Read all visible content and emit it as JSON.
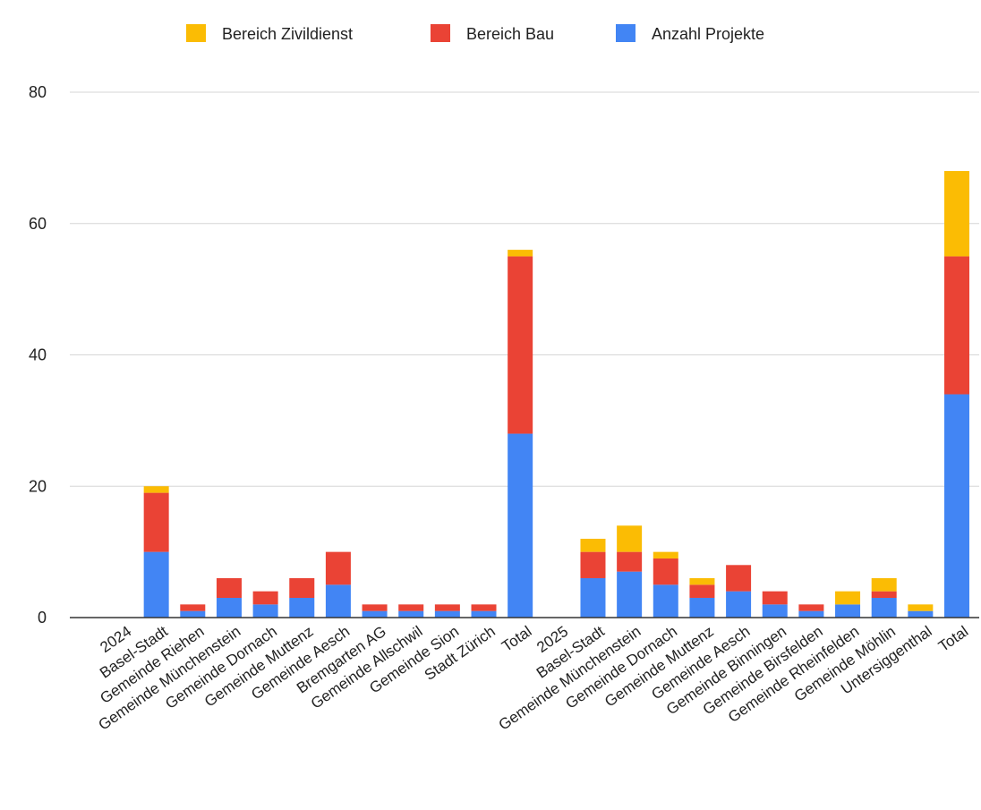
{
  "chart_data": {
    "type": "bar",
    "stacked": true,
    "categories": [
      "2024",
      "Basel-Stadt",
      "Gemeinde Riehen",
      "Gemeinde Münchenstein",
      "Gemeinde Dornach",
      "Gemeinde Muttenz",
      "Gemeinde Aesch",
      "Bremgarten AG",
      "Gemeinde Allschwil",
      "Gemeinde Sion",
      "Stadt Zürich",
      "Total",
      "2025",
      "Basel-Stadt",
      "Gemeinde Münchenstein",
      "Gemeinde Dornach",
      "Gemeinde Muttenz",
      "Gemeinde Aesch",
      "Gemeinde Binningen",
      "Gemeinde Birsfelden",
      "Gemeinde Rheinfelden",
      "Gemeinde Möhlin",
      "Untersiggenthal",
      "Total"
    ],
    "series": [
      {
        "name": "Anzahl Projekte",
        "color": "#4285f4",
        "values": [
          0,
          10,
          1,
          3,
          2,
          3,
          5,
          1,
          1,
          1,
          1,
          28,
          0,
          6,
          7,
          5,
          3,
          4,
          2,
          1,
          2,
          3,
          1,
          34
        ]
      },
      {
        "name": "Bereich Bau",
        "color": "#ea4335",
        "values": [
          0,
          9,
          1,
          3,
          2,
          3,
          5,
          1,
          1,
          1,
          1,
          27,
          0,
          4,
          3,
          4,
          2,
          4,
          2,
          1,
          0,
          1,
          0,
          21
        ]
      },
      {
        "name": "Bereich Zivildienst",
        "color": "#fbbc04",
        "values": [
          0,
          1,
          0,
          0,
          0,
          0,
          0,
          0,
          0,
          0,
          0,
          1,
          0,
          2,
          4,
          1,
          1,
          0,
          0,
          0,
          2,
          2,
          1,
          13
        ]
      }
    ],
    "legend_order": [
      "Bereich Zivildienst",
      "Bereich Bau",
      "Anzahl Projekte"
    ],
    "legend_position": "top",
    "ylim": [
      0,
      80
    ],
    "yticks": [
      "0",
      "20",
      "40",
      "60",
      "80"
    ],
    "grid": true,
    "title": "",
    "xlabel": "",
    "ylabel": ""
  }
}
